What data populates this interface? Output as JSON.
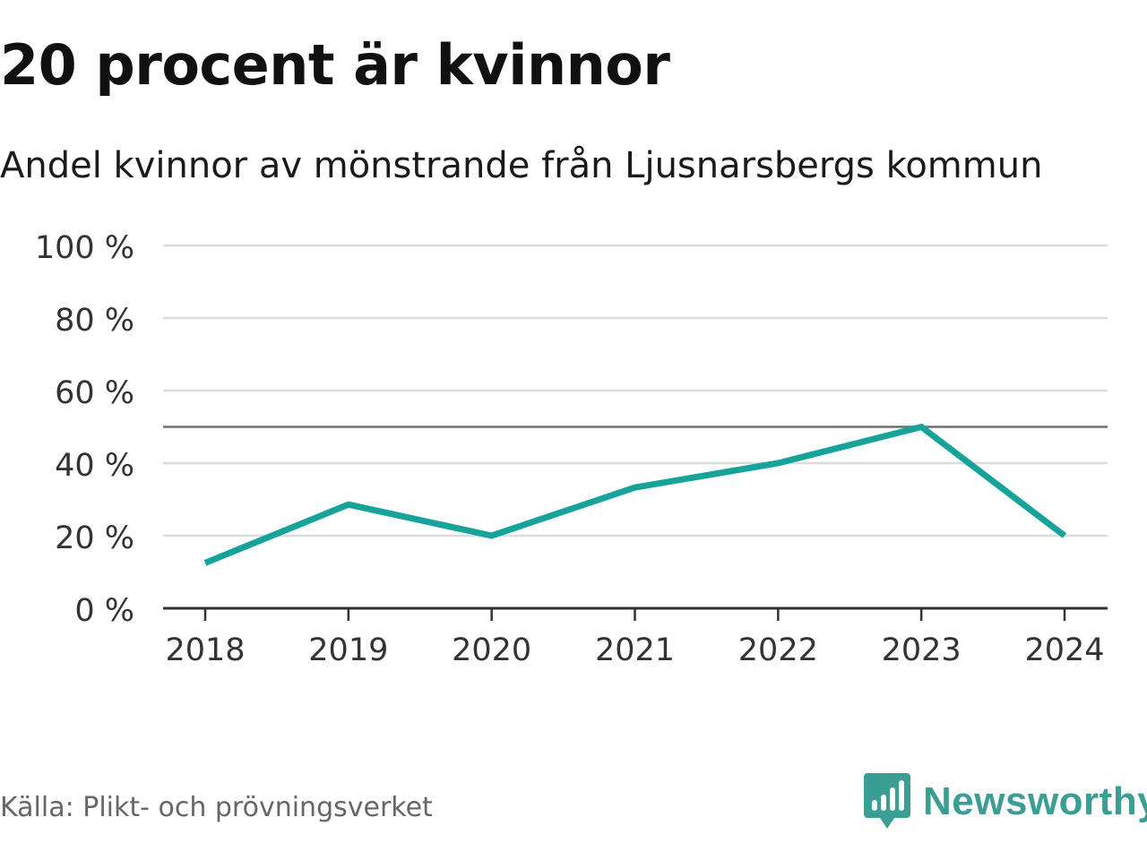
{
  "header": {
    "title": "20 procent är kvinnor",
    "subtitle": "Andel kvinnor av mönstrande från Ljusnarsbergs kommun"
  },
  "footer": {
    "source": "Källa: Plikt- och prövningsverket",
    "brand": "Newsworthy"
  },
  "colors": {
    "line": "#16a39a",
    "reference_line": "#6e6e6e",
    "grid": "#dcdcdc",
    "axis": "#333333",
    "brand": "#3a9e94"
  },
  "chart_data": {
    "type": "line",
    "title": "20 procent är kvinnor",
    "subtitle": "Andel kvinnor av mönstrande från Ljusnarsbergs kommun",
    "xlabel": "",
    "ylabel": "",
    "categories": [
      "2018",
      "2019",
      "2020",
      "2021",
      "2022",
      "2023",
      "2024"
    ],
    "series": [
      {
        "name": "Andel kvinnor",
        "values": [
          12.5,
          28.6,
          20,
          33.3,
          40,
          50,
          20
        ]
      }
    ],
    "ylim": [
      0,
      100
    ],
    "yticks": [
      0,
      20,
      40,
      60,
      80,
      100
    ],
    "ytick_labels": [
      "0 %",
      "20 %",
      "40 %",
      "60 %",
      "80 %",
      "100 %"
    ],
    "reference_line": 50,
    "grid": true
  }
}
